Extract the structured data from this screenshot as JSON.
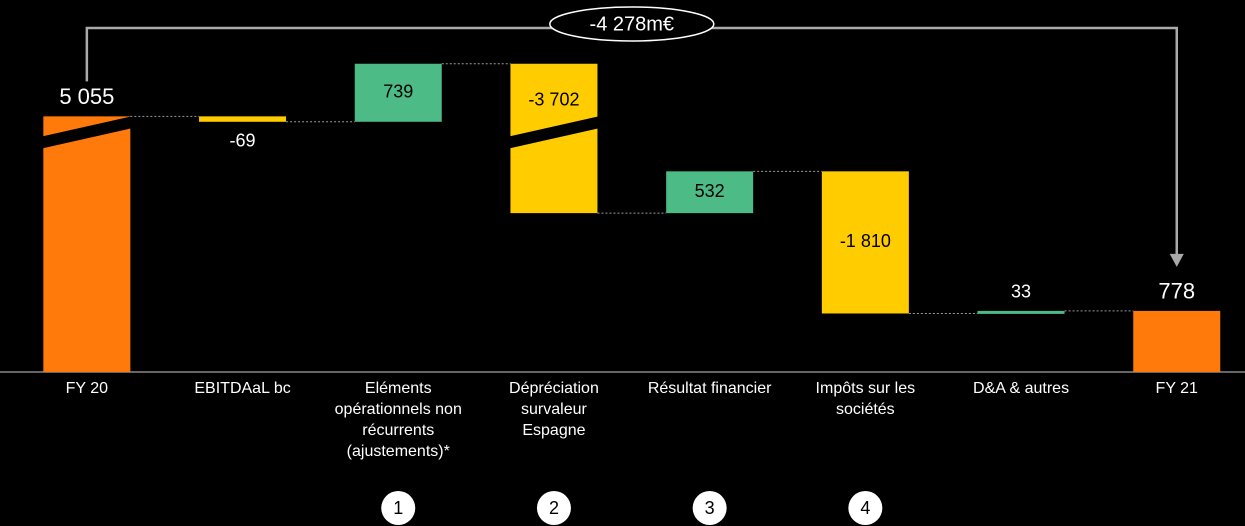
{
  "chart_data": {
    "type": "waterfall",
    "categories": [
      "FY 20",
      "EBITDAaL bc",
      "Eléments opérationnels non récurrents (ajustements)*",
      "Dépréciation survaleur Espagne",
      "Résultat financier",
      "Impôts sur les sociétés",
      "D&A & autres",
      "FY 21"
    ],
    "values": [
      5055,
      -69,
      739,
      -3702,
      532,
      -1810,
      33,
      778
    ],
    "value_labels": [
      "5 055",
      "-69",
      "739",
      "-3 702",
      "532",
      "-1 810",
      "33",
      "778"
    ],
    "totals": [
      true,
      false,
      false,
      false,
      false,
      false,
      false,
      true
    ],
    "colors": [
      "#ff7a0a",
      "#ffcc00",
      "#4cbb86",
      "#ffcc00",
      "#4cbb86",
      "#ffcc00",
      "#4cbb86",
      "#ff7a0a"
    ],
    "markers": [
      null,
      null,
      "1",
      "2",
      "3",
      "4",
      null,
      null
    ],
    "annotation": "-4 278m€",
    "ylim": [
      0,
      5900
    ],
    "axis_break": [
      3000,
      4800
    ]
  }
}
